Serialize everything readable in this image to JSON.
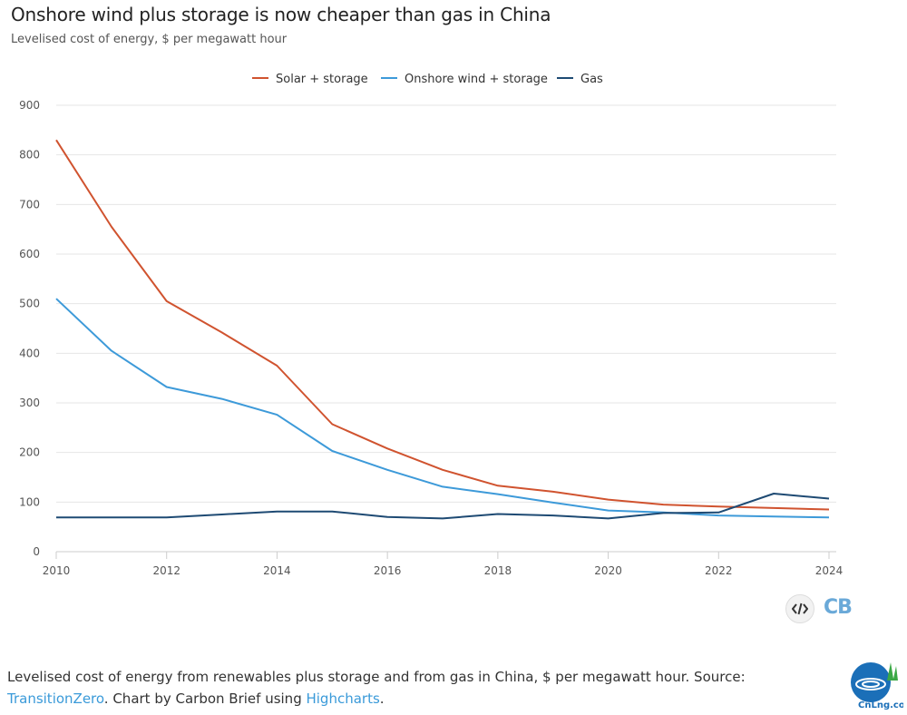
{
  "header": {
    "title": "Onshore wind plus storage is now cheaper than gas in China",
    "subtitle": "Levelised cost of energy, $ per megawatt hour"
  },
  "caption": {
    "text_before": "Levelised cost of energy from renewables plus storage and from gas in China, $ per megawatt hour. Source: ",
    "source_link": "TransitionZero",
    "text_middle": ". Chart by Carbon Brief using ",
    "tool_link": "Highcharts",
    "text_after": "."
  },
  "branding": {
    "cb_logo": "CB",
    "embed_icon": "code-icon",
    "watermark": "CnLng.com"
  },
  "colors": {
    "solar": "#d0532f",
    "wind": "#3d9ad9",
    "gas": "#1e4a73",
    "grid": "#e6e6e6",
    "axis": "#cccccc",
    "link": "#3a9ad9"
  },
  "chart_data": {
    "type": "line",
    "title": "Onshore wind plus storage is now cheaper than gas in China",
    "subtitle": "Levelised cost of energy, $ per megawatt hour",
    "xlabel": "",
    "ylabel": "",
    "x": [
      2010,
      2011,
      2012,
      2013,
      2014,
      2015,
      2016,
      2017,
      2018,
      2019,
      2020,
      2021,
      2022,
      2023,
      2024
    ],
    "xticks": [
      2010,
      2012,
      2014,
      2016,
      2018,
      2020,
      2022,
      2024
    ],
    "yticks": [
      0,
      100,
      200,
      300,
      400,
      500,
      600,
      700,
      800,
      900
    ],
    "xlim": [
      2010,
      2024
    ],
    "ylim": [
      0,
      900
    ],
    "grid": true,
    "legend_position": "top-center",
    "series": [
      {
        "name": "Solar + storage",
        "color": "#d0532f",
        "values": [
          830,
          655,
          505,
          442,
          375,
          257,
          208,
          165,
          133,
          121,
          105,
          95,
          91,
          88,
          85
        ]
      },
      {
        "name": "Onshore wind + storage",
        "color": "#3d9ad9",
        "values": [
          510,
          405,
          332,
          308,
          276,
          203,
          165,
          131,
          116,
          99,
          83,
          79,
          73,
          71,
          69
        ]
      },
      {
        "name": "Gas",
        "color": "#1e4a73",
        "values": [
          69,
          69,
          69,
          75,
          81,
          81,
          70,
          67,
          76,
          73,
          67,
          78,
          79,
          117,
          107
        ]
      }
    ]
  }
}
